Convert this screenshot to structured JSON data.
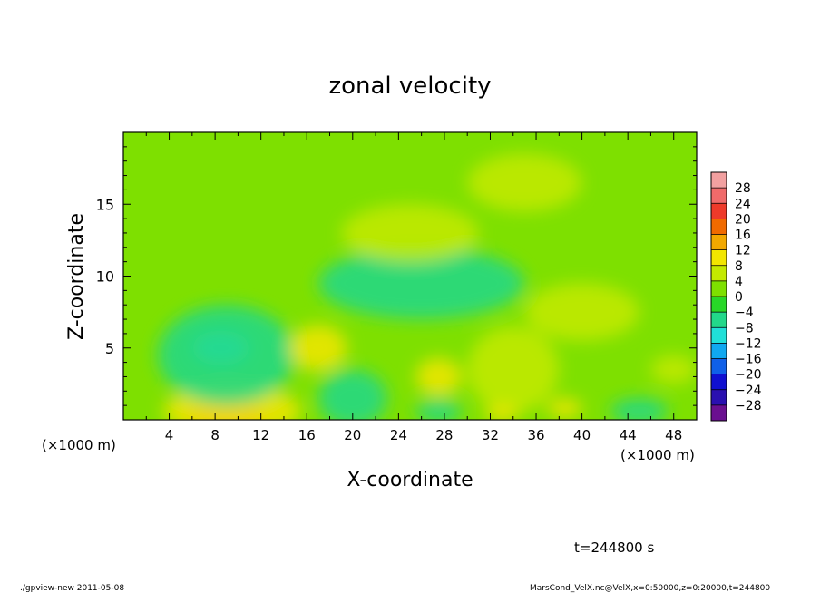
{
  "chart_data": {
    "type": "heatmap",
    "title": "zonal velocity",
    "xlabel": "X-coordinate",
    "ylabel": "Z-coordinate",
    "x_unit_left": "(×1000 m)",
    "x_unit_right": "(×1000 m)",
    "xlim": [
      0,
      50
    ],
    "ylim": [
      0,
      20
    ],
    "x_ticks": [
      4,
      8,
      12,
      16,
      20,
      24,
      28,
      32,
      36,
      40,
      44,
      48
    ],
    "y_ticks": [
      5,
      10,
      15
    ],
    "colorbar": {
      "levels": [
        28,
        24,
        20,
        16,
        12,
        8,
        4,
        0,
        -4,
        -8,
        -12,
        -16,
        -20,
        -24,
        -28
      ],
      "level_labels": [
        "28",
        "24",
        "20",
        "16",
        "12",
        "8",
        "4",
        "0",
        "−4",
        "−8",
        "−12",
        "−16",
        "−20",
        "−24",
        "−28"
      ],
      "colors": [
        "#f2a0a0",
        "#f06a6a",
        "#ee3a2a",
        "#f06a00",
        "#f2a800",
        "#f2e600",
        "#c4ea00",
        "#7ee000",
        "#28d828",
        "#22d88a",
        "#20e0d8",
        "#10a8f0",
        "#1060e8",
        "#1010d0",
        "#2a10b0",
        "#6a1090"
      ]
    },
    "fields": [
      {
        "x": 9,
        "z": 0.3,
        "value": 16,
        "rx": 3.5,
        "rz": 0.9
      },
      {
        "x": 9.5,
        "z": 0.6,
        "value": 8,
        "rx": 6,
        "rz": 1.8
      },
      {
        "x": 8.5,
        "z": 5,
        "value": -12,
        "rx": 2.5,
        "rz": 1.2
      },
      {
        "x": 9,
        "z": 4.5,
        "value": -8,
        "rx": 6,
        "rz": 3.5
      },
      {
        "x": 17,
        "z": 5,
        "value": 8,
        "rx": 2.5,
        "rz": 1.6
      },
      {
        "x": 27.5,
        "z": 3,
        "value": 8,
        "rx": 2,
        "rz": 1.3
      },
      {
        "x": 34,
        "z": 3.5,
        "value": 4,
        "rx": 4,
        "rz": 3
      },
      {
        "x": 40,
        "z": 7.5,
        "value": 6,
        "rx": 5,
        "rz": 2
      },
      {
        "x": 48,
        "z": 3.5,
        "value": 6,
        "rx": 2,
        "rz": 1
      },
      {
        "x": 45,
        "z": 0.6,
        "value": -8,
        "rx": 2.5,
        "rz": 0.9
      },
      {
        "x": 27.5,
        "z": 0.6,
        "value": -8,
        "rx": 2,
        "rz": 0.8
      },
      {
        "x": 33,
        "z": 0.4,
        "value": 8,
        "rx": 1.5,
        "rz": 0.6
      },
      {
        "x": 38.5,
        "z": 0.8,
        "value": 8,
        "rx": 1.5,
        "rz": 0.7
      },
      {
        "x": 20,
        "z": 1.5,
        "value": -6,
        "rx": 3,
        "rz": 2
      },
      {
        "x": 26,
        "z": 9.5,
        "value": -6,
        "rx": 9,
        "rz": 2.5
      },
      {
        "x": 25,
        "z": 13,
        "value": 4,
        "rx": 6,
        "rz": 2
      },
      {
        "x": 35,
        "z": 16.5,
        "value": 4,
        "rx": 5,
        "rz": 2
      }
    ]
  },
  "annotations": {
    "time": "t=244800 s",
    "footer_left": "./gpview-new  2011-05-08",
    "footer_right": "MarsCond_VelX.nc@VelX,x=0:50000,z=0:20000,t=244800"
  }
}
